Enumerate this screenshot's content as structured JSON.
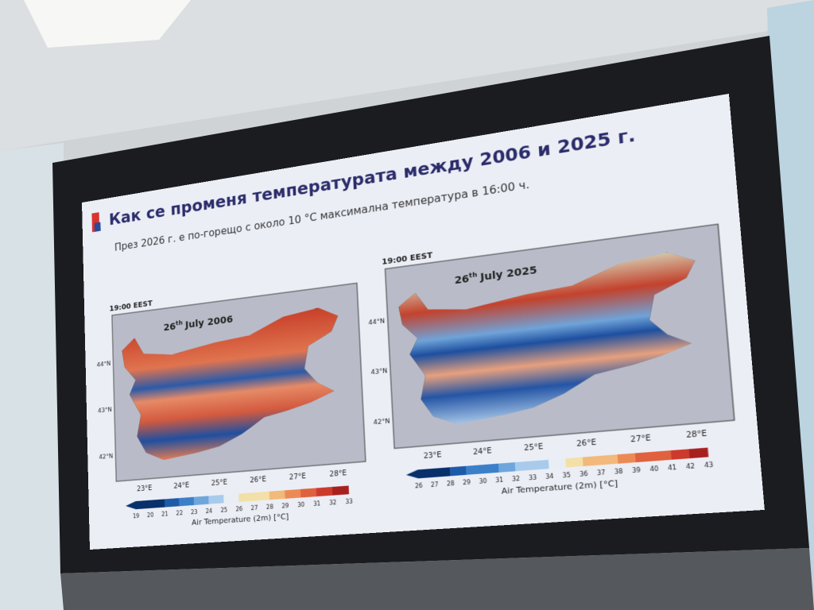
{
  "slide": {
    "title": "Как се променя температурата между 2006 и 2025 г.",
    "subtitle": "През 2026 г. е по-горещо с около 10 °С максимална температура в 16:00 ч.",
    "panels": [
      {
        "time": "19:00 EEST",
        "date_day": "26",
        "date_suffix": "th",
        "date_rest": "July 2006",
        "lat_ticks": [
          "42°N",
          "43°N",
          "44°N"
        ],
        "lon_ticks": [
          "23°E",
          "24°E",
          "25°E",
          "26°E",
          "27°E",
          "28°E"
        ],
        "colorbar_ticks": [
          19,
          20,
          21,
          22,
          23,
          24,
          25,
          26,
          27,
          28,
          29,
          30,
          31,
          32,
          33
        ],
        "colorbar_label": "Air Temperature (2m) [°C]"
      },
      {
        "time": "19:00 EEST",
        "date_day": "26",
        "date_suffix": "th",
        "date_rest": "July 2025",
        "lat_ticks": [
          "42°N",
          "43°N",
          "44°N"
        ],
        "lon_ticks": [
          "23°E",
          "24°E",
          "25°E",
          "26°E",
          "27°E",
          "28°E"
        ],
        "colorbar_ticks": [
          26,
          27,
          28,
          29,
          30,
          31,
          32,
          33,
          34,
          35,
          36,
          37,
          38,
          39,
          40,
          41,
          42,
          43
        ],
        "colorbar_label": "Air Temperature (2m) [°C]"
      }
    ]
  }
}
